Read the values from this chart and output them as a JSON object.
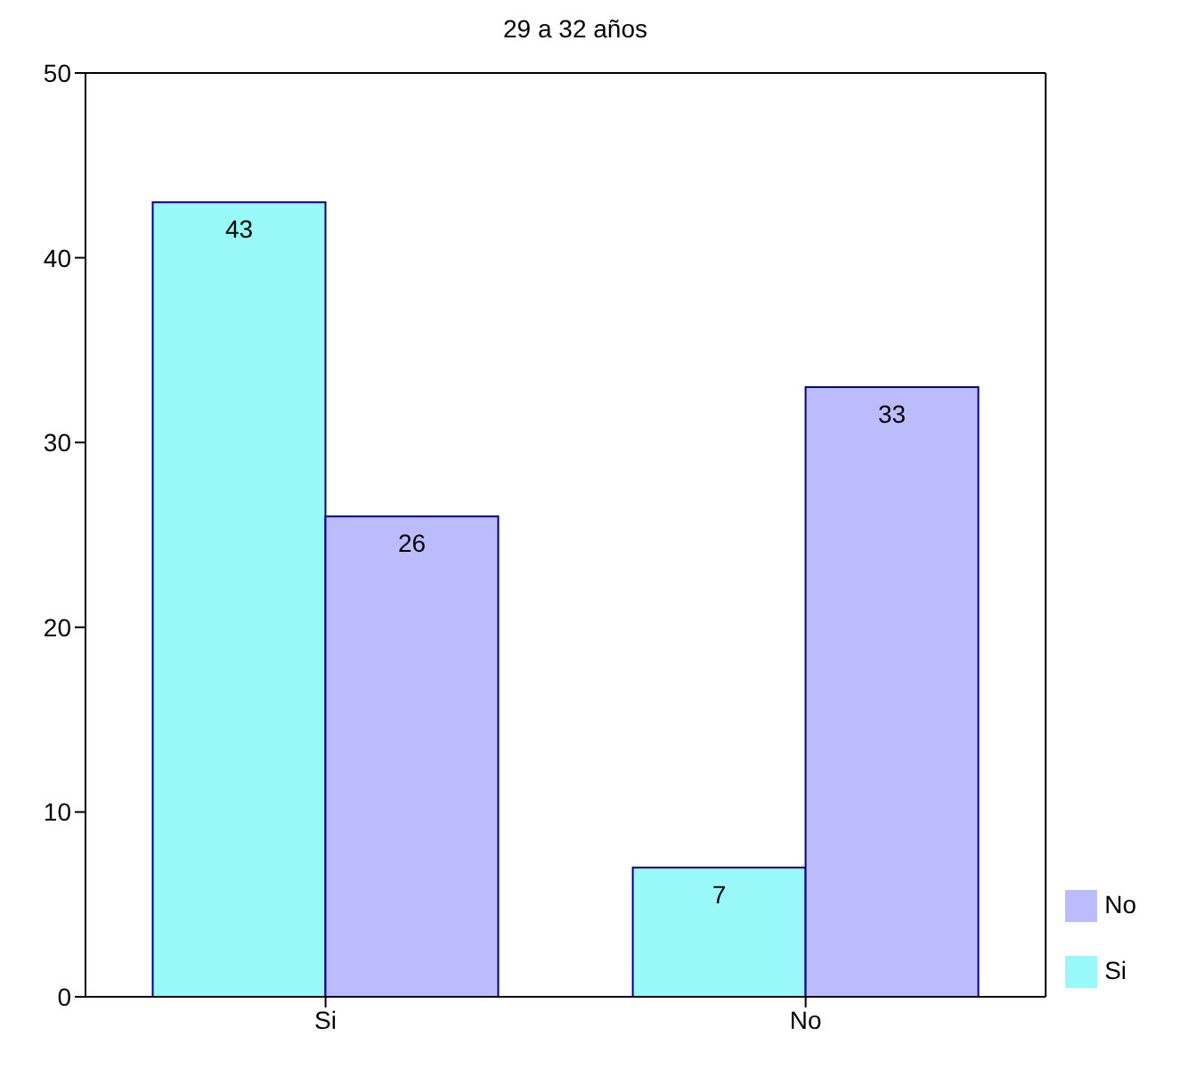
{
  "chart_data": {
    "type": "bar",
    "title": "29 a 32 años",
    "categories": [
      "Si",
      "No"
    ],
    "series": [
      {
        "name": "Si",
        "color": "#99f9f9",
        "values": [
          43,
          7
        ]
      },
      {
        "name": "No",
        "color": "#bcbcfc",
        "values": [
          26,
          33
        ]
      }
    ],
    "ylim": [
      0,
      50
    ],
    "yticks": [
      0,
      10,
      20,
      30,
      40,
      50
    ],
    "grid": false,
    "legend": "bottom right",
    "data_labels": true
  }
}
